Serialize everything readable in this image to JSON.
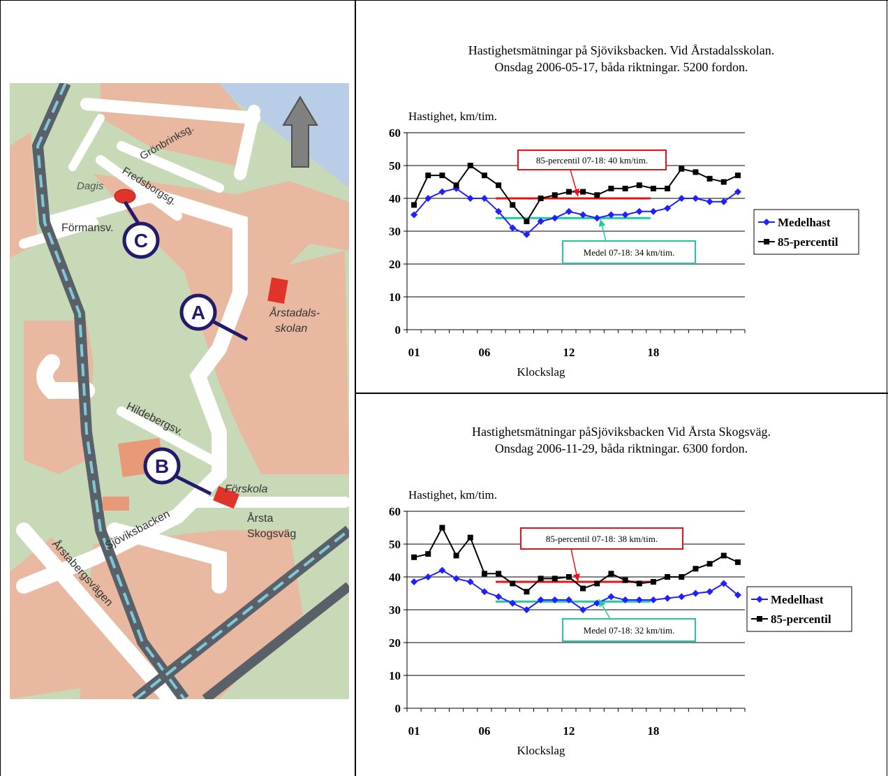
{
  "map": {
    "labels": {
      "dagis": "Dagis",
      "fredsborgsg": "Fredsborgsg.",
      "gronbrinksg": "Grönbrinksg.",
      "formansv": "Förmansv.",
      "arstadalsskolan_1": "Årstadals-",
      "arstadalsskolan_2": "skolan",
      "hildebergsv": "Hildebergsv.",
      "forskola": "Förskola",
      "arsta": "Årsta",
      "skogsvag": "Skogsväg",
      "sjoviksbacken": "Sjöviksbacken",
      "arstabergsvagen": "Årstabergsvägen"
    },
    "markers": {
      "a": "A",
      "b": "B",
      "c": "C"
    },
    "colors": {
      "park": "#c8d9b8",
      "block": "#e8b9a0",
      "road": "#ffffff",
      "water": "#b9cde6",
      "rail": "#5a6068",
      "rail_stripe": "#7fc8d8",
      "marker": "#221a6b",
      "dagis": "#e0342a"
    },
    "icons": [
      "north-arrow-icon"
    ]
  },
  "chart_data": [
    {
      "type": "line",
      "title": [
        "Hastighetsmätningar på Sjöviksbacken. Vid Årstadalsskolan.",
        "Onsdag 2006-05-17, båda riktningar. 5200 fordon."
      ],
      "ylabel": "Hastighet, km/tim.",
      "xlabel": "Klockslag",
      "ylim": [
        0,
        60
      ],
      "yticks": [
        "0",
        "10",
        "20",
        "30",
        "40",
        "50",
        "60"
      ],
      "x": [
        1,
        2,
        3,
        4,
        5,
        6,
        7,
        8,
        9,
        10,
        11,
        12,
        13,
        14,
        15,
        16,
        17,
        18,
        19,
        20,
        21,
        22,
        23,
        24
      ],
      "xtick_labels": [
        {
          "x": 1,
          "label": "01"
        },
        {
          "x": 6,
          "label": "06"
        },
        {
          "x": 12,
          "label": "12"
        },
        {
          "x": 18,
          "label": "18"
        }
      ],
      "series": [
        {
          "name": "Medelhast",
          "color": "#1f1fff",
          "marker": "diamond",
          "values": [
            35,
            40,
            42,
            43,
            40,
            40,
            36,
            31,
            29,
            33,
            34,
            36,
            35,
            34,
            35,
            35,
            36,
            36,
            37,
            40,
            40,
            39,
            39,
            42
          ]
        },
        {
          "name": "85-percentil",
          "color": "#000000",
          "marker": "square",
          "values": [
            38,
            47,
            47,
            44,
            50,
            47,
            44,
            38,
            33,
            40,
            41,
            42,
            42,
            41,
            43,
            43,
            44,
            43,
            43,
            49,
            48,
            46,
            45,
            47
          ]
        }
      ],
      "reference_lines": [
        {
          "from": 7,
          "to": 18,
          "value": 40,
          "color": "#ee1111"
        },
        {
          "from": 7,
          "to": 18,
          "value": 34,
          "color": "#22c9a0"
        }
      ],
      "annotations": [
        {
          "text": "85-percentil 07-18: 40 km/tim.",
          "color": "#ee1111"
        },
        {
          "text": "Medel 07-18: 34 km/tim.",
          "color": "#22c9a0"
        }
      ],
      "legend_position": "right",
      "grid": true
    },
    {
      "type": "line",
      "title": [
        "Hastighetsmätningar påSjöviksbacken Vid Årsta Skogsväg.",
        "Onsdag 2006-11-29, båda riktningar. 6300 fordon."
      ],
      "ylabel": "Hastighet, km/tim.",
      "xlabel": "Klockslag",
      "ylim": [
        0,
        60
      ],
      "yticks": [
        "0",
        "10",
        "20",
        "30",
        "40",
        "50",
        "60"
      ],
      "x": [
        1,
        2,
        3,
        4,
        5,
        6,
        7,
        8,
        9,
        10,
        11,
        12,
        13,
        14,
        15,
        16,
        17,
        18,
        19,
        20,
        21,
        22,
        23,
        24
      ],
      "xtick_labels": [
        {
          "x": 1,
          "label": "01"
        },
        {
          "x": 6,
          "label": "06"
        },
        {
          "x": 12,
          "label": "12"
        },
        {
          "x": 18,
          "label": "18"
        }
      ],
      "series": [
        {
          "name": "Medelhast",
          "color": "#1f1fff",
          "marker": "diamond",
          "values": [
            38.5,
            40,
            42,
            39.5,
            38.5,
            35.5,
            34,
            32,
            30,
            33,
            33,
            33,
            30,
            32,
            34,
            33,
            33,
            33,
            33.5,
            34,
            35,
            35.5,
            38,
            34.5
          ]
        },
        {
          "name": "85-percentil",
          "color": "#000000",
          "marker": "square",
          "values": [
            46,
            47,
            55,
            46.5,
            52,
            41,
            41,
            38,
            35.5,
            39.5,
            39.5,
            40,
            36.5,
            38,
            41,
            39,
            38,
            38.5,
            40,
            40,
            42.5,
            44,
            46.5,
            44.5
          ]
        }
      ],
      "reference_lines": [
        {
          "from": 7,
          "to": 18,
          "value": 38.5,
          "color": "#ee1111"
        },
        {
          "from": 7,
          "to": 18,
          "value": 32.5,
          "color": "#22c9a0"
        }
      ],
      "annotations": [
        {
          "text": "85-percentil 07-18: 38 km/tim.",
          "color": "#ee1111"
        },
        {
          "text": "Medel 07-18: 32 km/tim.",
          "color": "#22c9a0"
        }
      ],
      "legend_position": "right",
      "grid": true
    }
  ]
}
